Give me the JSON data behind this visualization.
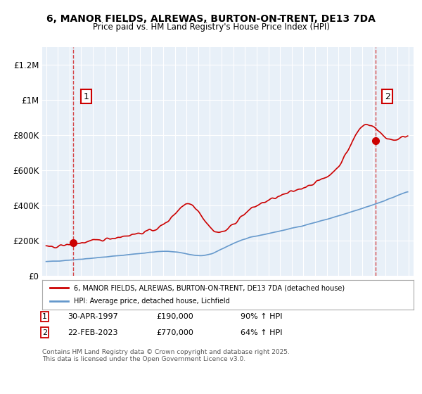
{
  "title": "6, MANOR FIELDS, ALREWAS, BURTON-ON-TRENT, DE13 7DA",
  "subtitle": "Price paid vs. HM Land Registry's House Price Index (HPI)",
  "ylim": [
    0,
    1300000
  ],
  "yticks": [
    0,
    200000,
    400000,
    600000,
    800000,
    1000000,
    1200000
  ],
  "ytick_labels": [
    "£0",
    "£200K",
    "£400K",
    "£600K",
    "£800K",
    "£1M",
    "£1.2M"
  ],
  "xlabel": "",
  "line1_color": "#cc0000",
  "line2_color": "#6699cc",
  "bg_color": "#e8f0f8",
  "grid_color": "#ffffff",
  "sale1_date": "1997-04-30",
  "sale1_price": 190000,
  "sale2_date": "2023-02-22",
  "sale2_price": 770000,
  "legend_label1": "6, MANOR FIELDS, ALREWAS, BURTON-ON-TRENT, DE13 7DA (detached house)",
  "legend_label2": "HPI: Average price, detached house, Lichfield",
  "annotation1_label": "1",
  "annotation2_label": "2",
  "footer_text": "Contains HM Land Registry data © Crown copyright and database right 2025.\nThis data is licensed under the Open Government Licence v3.0.",
  "table_row1": "1    30-APR-1997    £190,000    90% ↑ HPI",
  "table_row2": "2    22-FEB-2023    £770,000    64% ↑ HPI"
}
